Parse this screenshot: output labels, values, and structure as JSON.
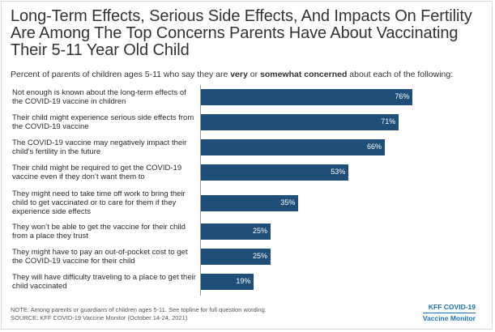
{
  "title": "Long-Term Effects, Serious Side Effects, And Impacts On Fertility Are Among The Top Concerns Parents Have About Vaccinating Their 5-11 Year Old Child",
  "subtitle": {
    "prefix": "Percent of parents of children ages 5-11 who say they are ",
    "very": "very",
    "or": " or ",
    "somewhat": "somewhat concerned",
    "suffix": " about each of the following:"
  },
  "chart_data": {
    "type": "bar",
    "orientation": "horizontal",
    "categories": [
      "Not enough is known about the long-term effects of the COVID-19 vaccine in children",
      "Their child might experience serious side effects from the COVID-19 vaccine",
      "The COVID-19 vaccine may negatively impact their child’s fertility in the future",
      "Their child might be required to get the COVID-19 vaccine even if they don’t want them to",
      "They might need to take time off work to bring their child to get vaccinated or to care for them if they experience side effects",
      "They won’t be able to get the vaccine for their child from a place they trust",
      "They might have to pay an out-of-pocket cost to get the COVID-19 vaccine for their child",
      "They will have difficulty traveling to a place to get their child vaccinated"
    ],
    "values": [
      76,
      71,
      66,
      53,
      35,
      25,
      25,
      19
    ],
    "labels": [
      "76%",
      "71%",
      "66%",
      "53%",
      "35%",
      "25%",
      "25%",
      "19%"
    ],
    "xlim": [
      0,
      100
    ],
    "color": "#1f4e79"
  },
  "note": "NOTE: Among parents or guardians of children ages 5-11. See topline for full question wording.",
  "source": "SOURCE: KFF COVID-19 Vaccine Monitor (October 14-24, 2021)",
  "logo": {
    "line1": "KFF COVID-19",
    "line2": "Vaccine Monitor"
  }
}
